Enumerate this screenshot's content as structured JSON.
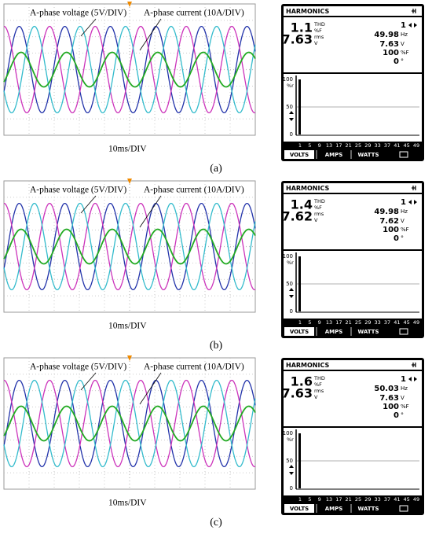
{
  "panels": [
    {
      "scope": {
        "voltage_label": "A-phase voltage (5V/DIV)",
        "current_label": "A-phase current (10A/DIV)",
        "timebase": "10ms/DIV"
      },
      "caption": "(a)",
      "analyzer": {
        "title": "HARMONICS",
        "thd_value": 1.1,
        "thd_label": "THD",
        "thd_unit": "%F",
        "rms_value": 7.63,
        "rms_label": "rms",
        "rms_unit": "V",
        "harmonic_order": 1,
        "frequency": 49.98,
        "frequency_unit": "Hz",
        "voltage": 7.63,
        "voltage_unit": "V",
        "fundamental_percent": 100,
        "percent_unit": "%F",
        "phase": 0,
        "phase_unit": "°",
        "y_ticks": [
          100,
          50,
          0
        ],
        "y_unit": "%r",
        "x_labels": [
          1,
          5,
          9,
          13,
          17,
          21,
          25,
          29,
          33,
          37,
          41,
          45,
          49
        ],
        "tabs": [
          "VOLTS",
          "AMPS",
          "WATTS"
        ]
      }
    },
    {
      "scope": {
        "voltage_label": "A-phase voltage (5V/DIV)",
        "current_label": "A-phase current (10A/DIV)",
        "timebase": "10ms/DIV"
      },
      "caption": "(b)",
      "analyzer": {
        "title": "HARMONICS",
        "thd_value": 1.4,
        "thd_label": "THD",
        "thd_unit": "%F",
        "rms_value": 7.62,
        "rms_label": "rms",
        "rms_unit": "V",
        "harmonic_order": 1,
        "frequency": 49.98,
        "frequency_unit": "Hz",
        "voltage": 7.62,
        "voltage_unit": "V",
        "fundamental_percent": 100,
        "percent_unit": "%F",
        "phase": 0,
        "phase_unit": "°",
        "y_ticks": [
          100,
          50,
          0
        ],
        "y_unit": "%r",
        "x_labels": [
          1,
          5,
          9,
          13,
          17,
          21,
          25,
          29,
          33,
          37,
          41,
          45,
          49
        ],
        "tabs": [
          "VOLTS",
          "AMPS",
          "WATTS"
        ]
      }
    },
    {
      "scope": {
        "voltage_label": "A-phase voltage (5V/DIV)",
        "current_label": "A-phase current (10A/DIV)",
        "timebase": "10ms/DIV"
      },
      "caption": "(c)",
      "analyzer": {
        "title": "HARMONICS",
        "thd_value": 1.6,
        "thd_label": "THD",
        "thd_unit": "%F",
        "rms_value": 7.63,
        "rms_label": "rms",
        "rms_unit": "V",
        "harmonic_order": 1,
        "frequency": 50.03,
        "frequency_unit": "Hz",
        "voltage": 7.63,
        "voltage_unit": "V",
        "fundamental_percent": 100,
        "percent_unit": "%F",
        "phase": 0,
        "phase_unit": "°",
        "y_ticks": [
          100,
          50,
          0
        ],
        "y_unit": "%r",
        "x_labels": [
          1,
          5,
          9,
          13,
          17,
          21,
          25,
          29,
          33,
          37,
          41,
          45,
          49
        ],
        "tabs": [
          "VOLTS",
          "AMPS",
          "WATTS"
        ]
      }
    }
  ]
}
